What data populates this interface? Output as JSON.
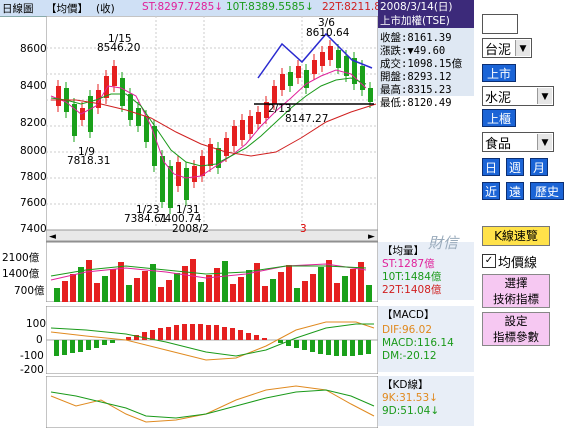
{
  "topbar": {
    "period": "日線圖",
    "indicator": "【均價】",
    "unit": "(收)",
    "st": "ST:8297.7285↓",
    "t10": "10T:8389.5585↓",
    "t22": "22T:8211.8"
  },
  "price_axis": [
    "8600",
    "8400",
    "8200",
    "8000",
    "7800",
    "7600",
    "7400"
  ],
  "annotations": {
    "a1": "1/15",
    "a1v": "8546.20",
    "a2": "1/9",
    "a2v": "7818.31",
    "a3": "1/23",
    "a3v": "7384.61",
    "a4": "1/31",
    "a4v": "7400.74",
    "a5": "3/6",
    "a5v": "8610.64",
    "a6": "2/13",
    "a6v": "8147.27"
  },
  "x_labels": {
    "m1": "2008/2",
    "m2": "3"
  },
  "info": {
    "title1": "2008/3/14(日)",
    "title2": "上市加權(TSE)",
    "close": "收盤:8161.39",
    "change": "漲跌:▼49.60",
    "volume": "成交:1098.15億",
    "open": "開盤:8293.12",
    "high": "最高:8315.23",
    "low": "最低:8120.49"
  },
  "controls": {
    "cat1": "台泥",
    "btn_listed": "上市",
    "cat2": "水泥",
    "btn_otc": "上櫃",
    "cat3": "食品",
    "day": "日",
    "week": "週",
    "month": "月",
    "near": "近",
    "far": "遠",
    "history": "歷史"
  },
  "volume_panel": {
    "header": "【均量】",
    "watermark": "財信",
    "st": "ST:1287億",
    "t10": "10T:1484億",
    "t22": "22T:1408億",
    "axis": [
      "2100億",
      "1400億",
      "700億"
    ]
  },
  "macd_panel": {
    "header": "【MACD】",
    "dif": "DIF:96.02",
    "macd": "MACD:116.14",
    "dm": "DM:-20.12",
    "axis": [
      "100",
      "0",
      "-100",
      "-200"
    ]
  },
  "kd_panel": {
    "header": "【KD線】",
    "k": "9K:31.53↓",
    "d": "9D:51.04↓"
  },
  "right_panel": {
    "kline_btn": "K線速覽",
    "avg_line": "均價線",
    "select_ind": "選擇\n技術指標",
    "settings": "設定\n指標參數"
  },
  "colors": {
    "up": "#e52020",
    "down": "#1aa01a",
    "panel_bg": "#dfe8f3",
    "accent": "#3c2a7a"
  }
}
